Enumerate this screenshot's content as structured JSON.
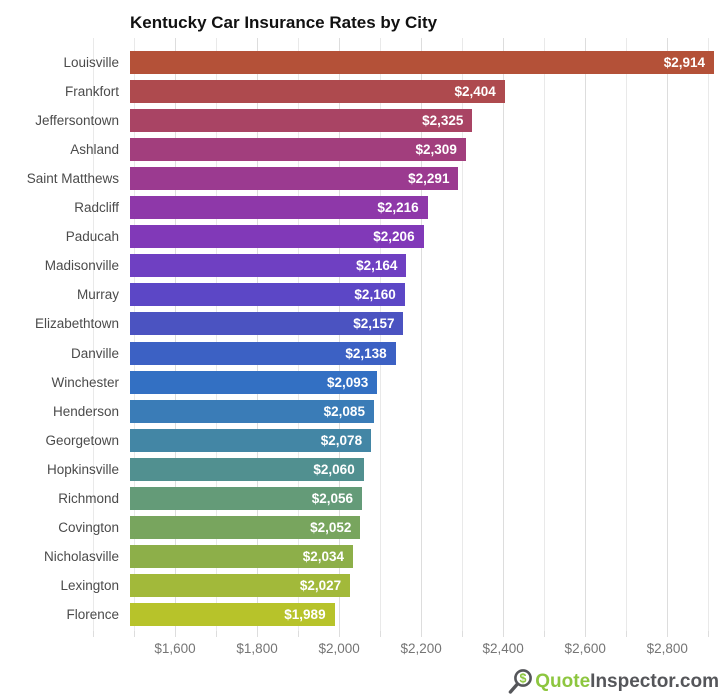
{
  "title": "Kentucky Car Insurance Rates by City",
  "chart_data": {
    "type": "bar",
    "orientation": "horizontal",
    "title": "Kentucky Car Insurance Rates by City",
    "xlabel": "",
    "ylabel": "",
    "grid": true,
    "legend": false,
    "categories": [
      "Louisville",
      "Frankfort",
      "Jeffersontown",
      "Ashland",
      "Saint Matthews",
      "Radcliff",
      "Paducah",
      "Madisonville",
      "Murray",
      "Elizabethtown",
      "Danville",
      "Winchester",
      "Henderson",
      "Georgetown",
      "Hopkinsville",
      "Richmond",
      "Covington",
      "Nicholasville",
      "Lexington",
      "Florence"
    ],
    "values": [
      2914,
      2404,
      2325,
      2309,
      2291,
      2216,
      2206,
      2164,
      2160,
      2157,
      2138,
      2093,
      2085,
      2078,
      2060,
      2056,
      2052,
      2034,
      2027,
      1989
    ],
    "value_labels": [
      "$2,914",
      "$2,404",
      "$2,325",
      "$2,309",
      "$2,291",
      "$2,216",
      "$2,206",
      "$2,164",
      "$2,160",
      "$2,157",
      "$2,138",
      "$2,093",
      "$2,085",
      "$2,078",
      "$2,060",
      "$2,056",
      "$2,052",
      "$2,034",
      "$2,027",
      "$1,989"
    ],
    "bar_colors": [
      "#b45138",
      "#ae4a4e",
      "#a94464",
      "#a23e7d",
      "#9b3a90",
      "#8e38a9",
      "#8139b8",
      "#6f40c2",
      "#5c47c6",
      "#4b53c1",
      "#3c61c4",
      "#3370c3",
      "#3a7cb7",
      "#4386a5",
      "#519090",
      "#649b78",
      "#78a55e",
      "#8daf49",
      "#a2b93a",
      "#b7c32a"
    ],
    "axis": {
      "min": 1400,
      "max": 2914,
      "bar_base": 1490,
      "gridline_step": 100,
      "gridline_end": 2900,
      "tick_values": [
        1600,
        1800,
        2000,
        2200,
        2400,
        2600,
        2800
      ],
      "tick_labels": [
        "$1,600",
        "$1,800",
        "$2,000",
        "$2,200",
        "$2,400",
        "$2,600",
        "$2,800"
      ]
    }
  },
  "footer": {
    "brand_quote": "Quote",
    "brand_rest": "Inspector.com",
    "brand_green": "#8dc63f",
    "brand_gray": "#55565a",
    "icon": "magnifier-dollar-icon"
  }
}
